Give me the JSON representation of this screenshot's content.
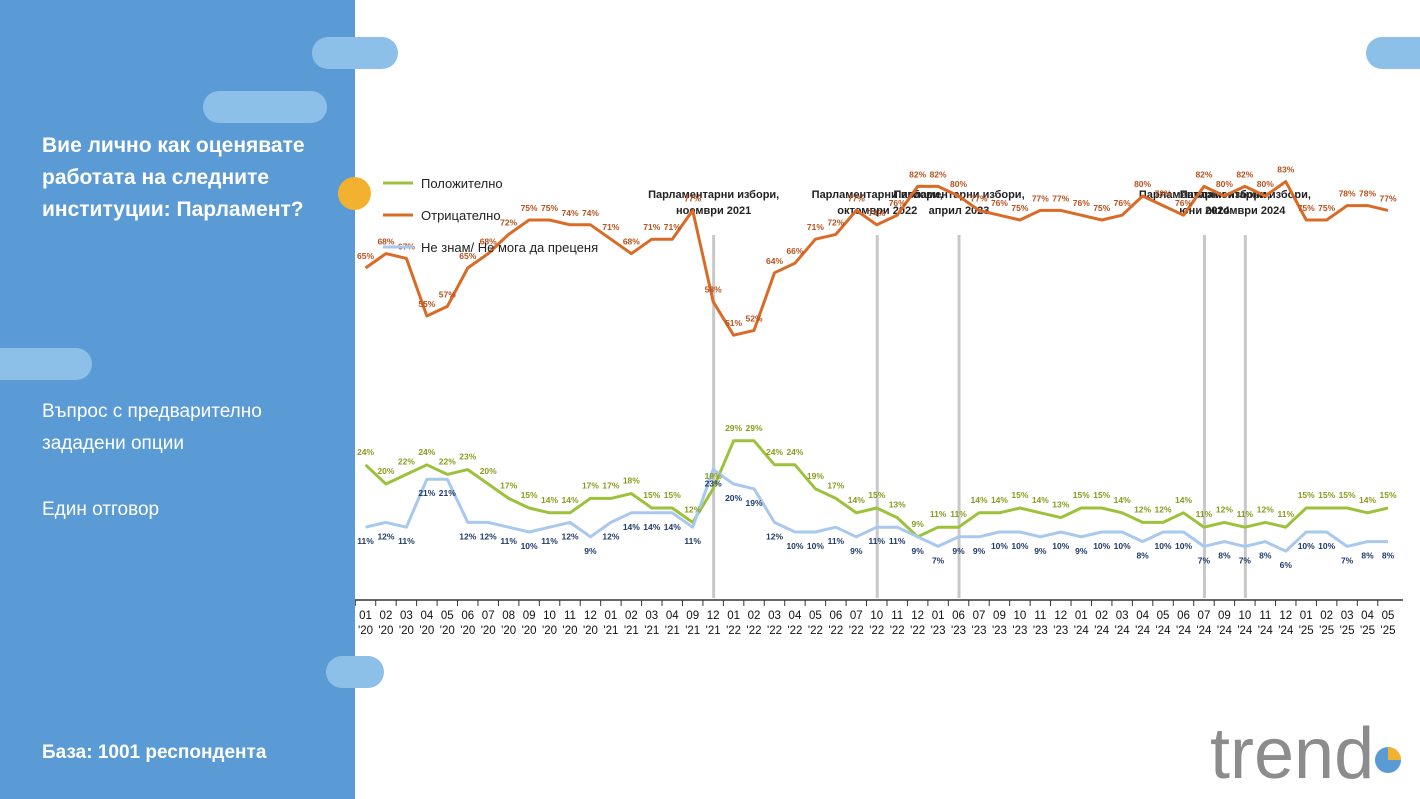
{
  "sidebar": {
    "question": "Вие лично как оценявате работата на следните институции: Парламент?",
    "question_type": "Въпрос с предварително зададени опции",
    "answer_type": "Един отговор",
    "base": "База:  1001 респондента"
  },
  "logo_text": "trend",
  "colors": {
    "panel": "#5b9bd5",
    "positive": "#9cc23b",
    "negative": "#d96b27",
    "dont_know": "#a8c8ee",
    "accent": "#f2b12e"
  },
  "chart_data": {
    "type": "line",
    "legend_position": "top-left",
    "grid": false,
    "ylim": [
      0,
      100
    ],
    "categories": [
      "01 '20",
      "02 '20",
      "03 '20",
      "04 '20",
      "05 '20",
      "06 '20",
      "07 '20",
      "08 '20",
      "09 '20",
      "10 '20",
      "11 '20",
      "12 '20",
      "01 '21",
      "02 '21",
      "03 '21",
      "04 '21",
      "09 '21",
      "12 '21",
      "01 '22",
      "02 '22",
      "03 '22",
      "04 '22",
      "05 '22",
      "06 '22",
      "07 '22",
      "10 '22",
      "11 '22",
      "12 '22",
      "01 '23",
      "06 '23",
      "07 '23",
      "09 '23",
      "10 '23",
      "11 '23",
      "12 '23",
      "01 '24",
      "02 '24",
      "03 '24",
      "04 '24",
      "05 '24",
      "06 '24",
      "07 '24",
      "09 '24",
      "10 '24",
      "11 '24",
      "12 '24",
      "01 '25",
      "02 '25",
      "03 '25",
      "04 '25",
      "05 '25"
    ],
    "series": [
      {
        "name": "Положително",
        "color": "#9cc23b",
        "label_color": "#8a9a1e",
        "values": [
          24,
          20,
          22,
          24,
          22,
          23,
          20,
          17,
          15,
          14,
          14,
          17,
          17,
          18,
          15,
          15,
          12,
          19,
          29,
          29,
          24,
          24,
          19,
          17,
          14,
          15,
          13,
          9,
          11,
          11,
          14,
          14,
          15,
          14,
          13,
          15,
          15,
          14,
          12,
          12,
          14,
          11,
          12,
          11,
          12,
          11,
          15,
          15,
          15,
          14,
          15
        ]
      },
      {
        "name": "Отрицателно",
        "color": "#d96b27",
        "label_color": "#b8501b",
        "values": [
          65,
          68,
          67,
          55,
          57,
          65,
          68,
          72,
          75,
          75,
          74,
          74,
          71,
          68,
          71,
          71,
          77,
          58,
          51,
          52,
          64,
          66,
          71,
          72,
          77,
          74,
          76,
          82,
          82,
          80,
          77,
          76,
          75,
          77,
          77,
          76,
          75,
          76,
          80,
          78,
          76,
          82,
          80,
          82,
          80,
          83,
          75,
          75,
          78,
          78,
          77
        ]
      },
      {
        "name": "Не знам/ Не мога да преценя",
        "color": "#a8c8ee",
        "label_color": "#1f3a6b",
        "values": [
          11,
          12,
          11,
          21,
          21,
          12,
          12,
          11,
          10,
          11,
          12,
          9,
          12,
          14,
          14,
          14,
          11,
          23,
          20,
          19,
          12,
          10,
          10,
          11,
          9,
          11,
          11,
          9,
          7,
          9,
          9,
          10,
          10,
          9,
          10,
          9,
          10,
          10,
          8,
          10,
          10,
          7,
          8,
          7,
          8,
          6,
          10,
          10,
          7,
          8,
          8
        ]
      }
    ],
    "events": [
      {
        "label": "Парламентарни избори, ноември 2021",
        "after_index": 17
      },
      {
        "label": "Парламентарни избори, октомври 2022",
        "after_index": 25
      },
      {
        "label": "Парламентарни избори, април 2023",
        "after_index": 29
      },
      {
        "label": "Парламентарни избори, юни 2024",
        "after_index": 41
      },
      {
        "label": "Парламентарни избори, октомври 2024",
        "after_index": 43
      }
    ]
  }
}
